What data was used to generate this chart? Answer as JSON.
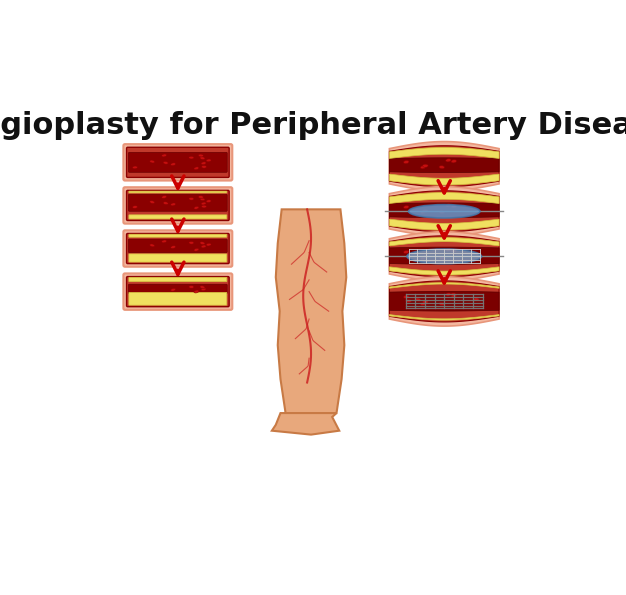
{
  "title": "Angioplasty for Peripheral Artery Disease",
  "title_fontsize": 22,
  "title_fontweight": "bold",
  "background_color": "#ffffff",
  "arrow_color": "#cc0000",
  "skin_color": "#E8A87C",
  "artery_outer": "#f4c2a1",
  "artery_wall": "#c0392b",
  "artery_inner": "#8b0000",
  "plaque_color": "#f5e642",
  "rbc_color": "#cc1111",
  "rbc_dark": "#8b0000",
  "balloon_color": "#6699cc",
  "stent_color": "#aaaaaa",
  "wire_color": "#888888"
}
